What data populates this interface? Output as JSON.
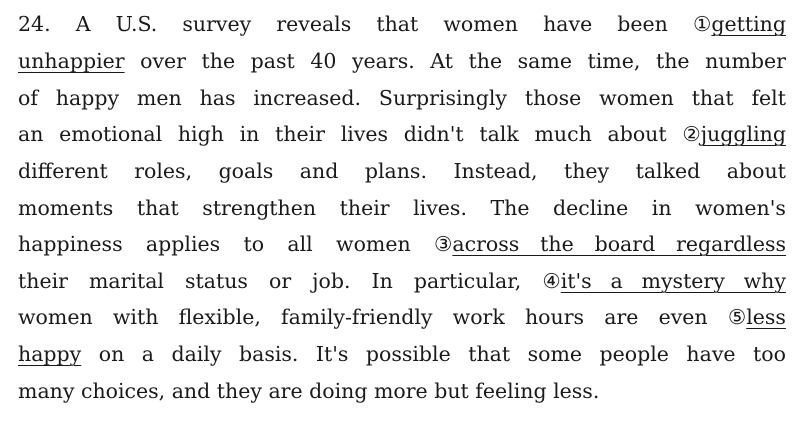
{
  "question": {
    "lines": [
      {
        "before": "24. A U.S. survey reveals that women have been ",
        "marker": "①",
        "underlined": "getting"
      },
      {
        "underlined": "unhappier",
        "after": " over the past 40 years. At the same time, the number"
      },
      {
        "text": "of happy men has increased. Surprisingly those women that felt"
      },
      {
        "before": "an emotional high in their lives didn't talk much about ",
        "marker": "②",
        "underlined": "juggling"
      },
      {
        "text": "different roles, goals and plans. Instead, they talked about"
      },
      {
        "text": "moments that strengthen their lives. The decline in women's"
      },
      {
        "before": "happiness applies to all women ",
        "marker": "③",
        "underlined": "across the board regardless"
      },
      {
        "before": "their marital status or job. In particular, ",
        "marker": "④",
        "underlined": "it's a mystery why"
      },
      {
        "before": "women with flexible, family-friendly work hours are even ",
        "marker": "⑤",
        "underlined": "less"
      },
      {
        "underlined": "happy",
        "after": " on a daily basis. It's possible that some people have too"
      },
      {
        "text": "many choices, and they are doing more but feeling less."
      }
    ]
  }
}
